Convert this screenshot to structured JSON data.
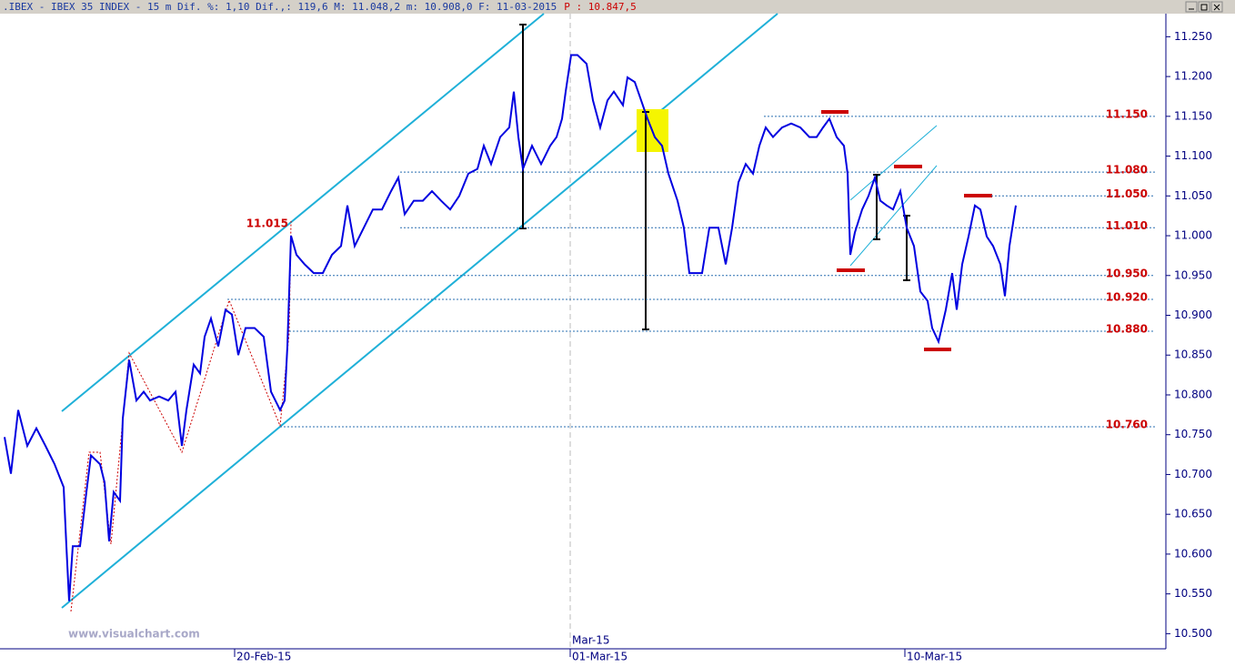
{
  "chart_data": {
    "type": "line",
    "title": ".IBEX - IBEX 35 INDEX -  15 m Dif. %: 1,10 Dif.,: 119,6 M: 11.048,2 m: 10.908,0 F: 11-03-2015",
    "price_label": "P : 10.847,5",
    "watermark": "www.visualchart.com",
    "color": "#0000e0",
    "x": [
      5,
      12,
      20,
      30,
      40,
      50,
      60,
      70,
      73,
      76,
      80,
      88,
      95,
      100,
      110,
      115,
      120,
      125,
      132,
      135,
      142,
      150,
      158,
      165,
      175,
      185,
      193,
      200,
      205,
      213,
      220,
      225,
      232,
      240,
      248,
      255,
      262,
      270,
      280,
      290,
      298,
      308,
      313,
      316,
      320,
      326,
      335,
      345,
      355,
      365,
      375,
      382,
      390,
      400,
      410,
      420,
      430,
      438,
      445,
      455,
      465,
      475,
      485,
      495,
      505,
      515,
      525,
      532,
      540,
      550,
      560,
      565,
      570,
      575,
      585,
      595,
      605,
      612,
      618,
      622,
      628,
      635,
      645,
      652,
      660,
      668,
      675,
      685,
      690,
      698,
      705,
      712,
      720,
      728,
      735,
      745,
      752,
      758,
      765,
      772,
      780,
      790,
      798,
      805,
      812,
      820,
      828,
      835,
      842,
      850,
      860,
      870,
      880,
      890,
      898,
      905,
      912,
      920,
      928,
      932,
      935,
      940,
      948,
      955,
      962,
      968,
      975,
      982,
      990,
      997,
      1005,
      1012,
      1020,
      1025,
      1032,
      1040,
      1047,
      1052,
      1058,
      1065,
      1072,
      1078,
      1085,
      1092,
      1100,
      1105,
      1110,
      1117
    ],
    "values": [
      10747,
      10701,
      10781,
      10736,
      10758,
      10736,
      10713,
      10684,
      10610,
      10541,
      10610,
      10610,
      10678,
      10724,
      10713,
      10690,
      10616,
      10678,
      10667,
      10770,
      10844,
      10793,
      10804,
      10793,
      10798,
      10793,
      10804,
      10736,
      10781,
      10838,
      10827,
      10873,
      10896,
      10861,
      10907,
      10901,
      10850,
      10884,
      10884,
      10873,
      10804,
      10781,
      10793,
      10861,
      11000,
      10976,
      10964,
      10953,
      10953,
      10976,
      10987,
      11038,
      10987,
      11010,
      11033,
      11033,
      11056,
      11073,
      11027,
      11044,
      11044,
      11056,
      11044,
      11033,
      11050,
      11078,
      11084,
      11113,
      11090,
      11124,
      11136,
      11181,
      11124,
      11084,
      11113,
      11090,
      11113,
      11124,
      11147,
      11181,
      11227,
      11227,
      11216,
      11170,
      11136,
      11170,
      11181,
      11164,
      11199,
      11193,
      11170,
      11147,
      11124,
      11113,
      11078,
      11044,
      11010,
      10953,
      10953,
      10953,
      11010,
      11010,
      10964,
      11010,
      11067,
      11090,
      11078,
      11113,
      11136,
      11124,
      11136,
      11141,
      11136,
      11124,
      11124,
      11136,
      11147,
      11124,
      11113,
      11078,
      10976,
      11004,
      11033,
      11050,
      11073,
      11044,
      11038,
      11033,
      11056,
      11010,
      10987,
      10930,
      10918,
      10884,
      10867,
      10907,
      10953,
      10907,
      10964,
      10999,
      11038,
      11033,
      10999,
      10987,
      10964,
      10924,
      10987,
      11038
    ],
    "xlim": [
      0,
      1280
    ],
    "xticks": [
      {
        "value": 258,
        "label": "20-Feb-15"
      },
      {
        "value": 627,
        "label": "01-Mar-15"
      },
      {
        "value": 995,
        "label": "10-Mar-15"
      }
    ],
    "month_marker": {
      "value": 627,
      "label": "Mar-15"
    },
    "ylim": [
      10481,
      11279
    ],
    "yticks": [
      {
        "value": 10500,
        "label": "10.500"
      },
      {
        "value": 10550,
        "label": "10.550"
      },
      {
        "value": 10600,
        "label": "10.600"
      },
      {
        "value": 10650,
        "label": "10.650"
      },
      {
        "value": 10700,
        "label": "10.700"
      },
      {
        "value": 10750,
        "label": "10.750"
      },
      {
        "value": 10800,
        "label": "10.800"
      },
      {
        "value": 10850,
        "label": "10.850"
      },
      {
        "value": 10900,
        "label": "10.900"
      },
      {
        "value": 10950,
        "label": "10.950"
      },
      {
        "value": 11000,
        "label": "11.000"
      },
      {
        "value": 11050,
        "label": "11.050"
      },
      {
        "value": 11100,
        "label": "11.100"
      },
      {
        "value": 11150,
        "label": "11.150"
      },
      {
        "value": 11200,
        "label": "11.200"
      },
      {
        "value": 11250,
        "label": "11.250"
      }
    ],
    "levels": [
      {
        "value": 11150,
        "label": "11.150"
      },
      {
        "value": 11080,
        "label": "11.080"
      },
      {
        "value": 11050,
        "label": "11.050"
      },
      {
        "value": 11010,
        "label": "11.010"
      },
      {
        "value": 10950,
        "label": "10.950"
      },
      {
        "value": 10920,
        "label": "10.920"
      },
      {
        "value": 10880,
        "label": "10.880"
      },
      {
        "value": 10760,
        "label": "10.760"
      }
    ],
    "level_color": "#cc0000",
    "annotation": {
      "value": 11015,
      "label": "11.015"
    }
  }
}
